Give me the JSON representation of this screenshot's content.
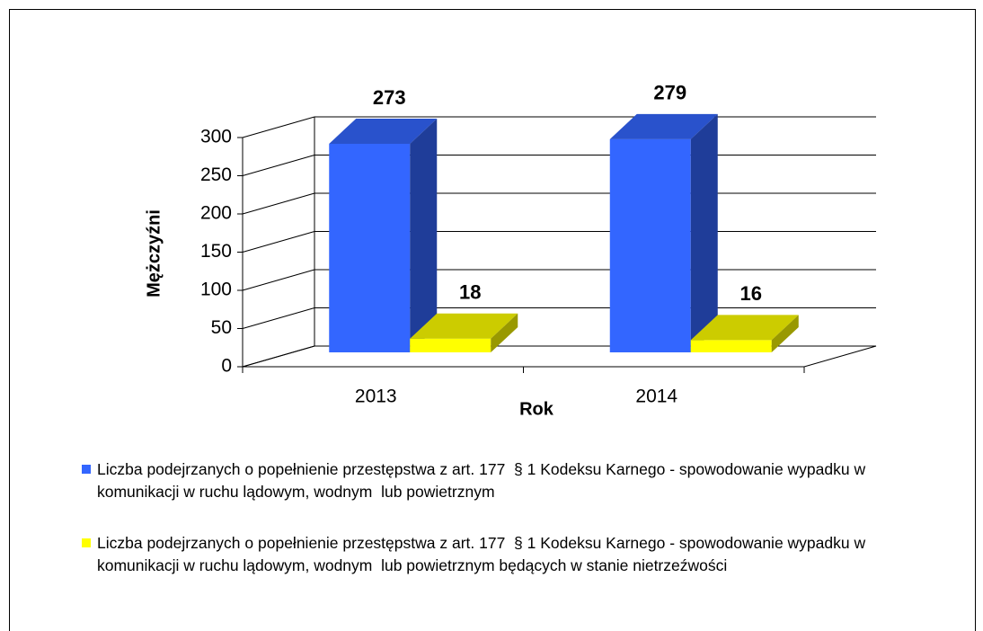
{
  "chart_data": {
    "type": "bar3d",
    "y_label": "Mężczyźni",
    "x_label": "Rok",
    "categories": [
      "2013",
      "2014"
    ],
    "series": [
      {
        "name": "Liczba podejrzanych o popełnienie przestępstwa z art. 177  § 1 Kodeksu Karnego - spowodowanie wypadku w komunikacji w ruchu lądowym, wodnym  lub powietrznym",
        "color": "#3366ff",
        "values": [
          273,
          279
        ]
      },
      {
        "name": "Liczba podejrzanych o popełnienie przestępstwa z art. 177  § 1 Kodeksu Karnego - spowodowanie wypadku w komunikacji w ruchu lądowym, wodnym  lub powietrznym będących w stanie nietrzeźwości",
        "color": "#ffff00",
        "values": [
          18,
          16
        ]
      }
    ],
    "ylim": [
      0,
      300
    ],
    "yticks": [
      0,
      50,
      100,
      150,
      200,
      250,
      300
    ],
    "grid": true
  }
}
